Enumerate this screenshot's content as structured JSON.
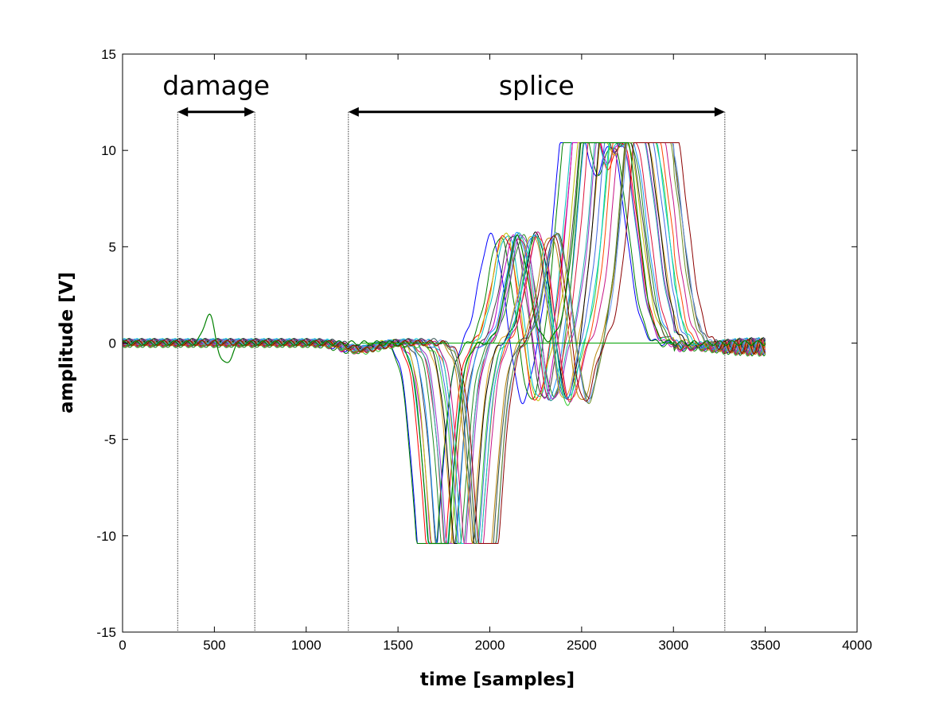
{
  "chart_data": {
    "type": "line",
    "xlabel": "time [samples]",
    "ylabel": "amplitude [V]",
    "xlim": [
      0,
      4000
    ],
    "ylim": [
      -15,
      15
    ],
    "xticks": [
      0,
      500,
      1000,
      1500,
      2000,
      2500,
      3000,
      3500,
      4000
    ],
    "yticks": [
      -15,
      -10,
      -5,
      0,
      5,
      10,
      15
    ],
    "x_tick_labels": [
      "0",
      "500",
      "1000",
      "1500",
      "2000",
      "2500",
      "3000",
      "3500",
      "4000"
    ],
    "y_tick_labels": [
      "-15",
      "-10",
      "-5",
      "0",
      "5",
      "10",
      "15"
    ],
    "grid": false,
    "series_count": 24,
    "x_range_samples": [
      0,
      3500
    ],
    "saturation_v": 10.4,
    "region_markers": [
      {
        "label": "damage",
        "start": 300,
        "end": 720
      },
      {
        "label": "splice",
        "start": 1230,
        "end": 3280
      }
    ],
    "damage_signal": {
      "peak_x": 470,
      "peak_y": 1.5,
      "trough_x": 560,
      "trough_y": -1.1,
      "color": "#008000"
    },
    "series_colors": [
      "#0000ff",
      "#008000",
      "#ff0000",
      "#00bfbf",
      "#bf00bf",
      "#bfbf00",
      "#404040",
      "#1e90ff",
      "#228b22",
      "#dc143c",
      "#20b2aa",
      "#9932cc",
      "#daa520",
      "#000000",
      "#4169e1",
      "#32cd32",
      "#ff4500",
      "#00ced1",
      "#c71585",
      "#b8860b",
      "#2f4f4f",
      "#6495ed",
      "#6b8e23",
      "#8b0000"
    ],
    "reference_line": {
      "y": 0,
      "color": "#00a000"
    }
  }
}
